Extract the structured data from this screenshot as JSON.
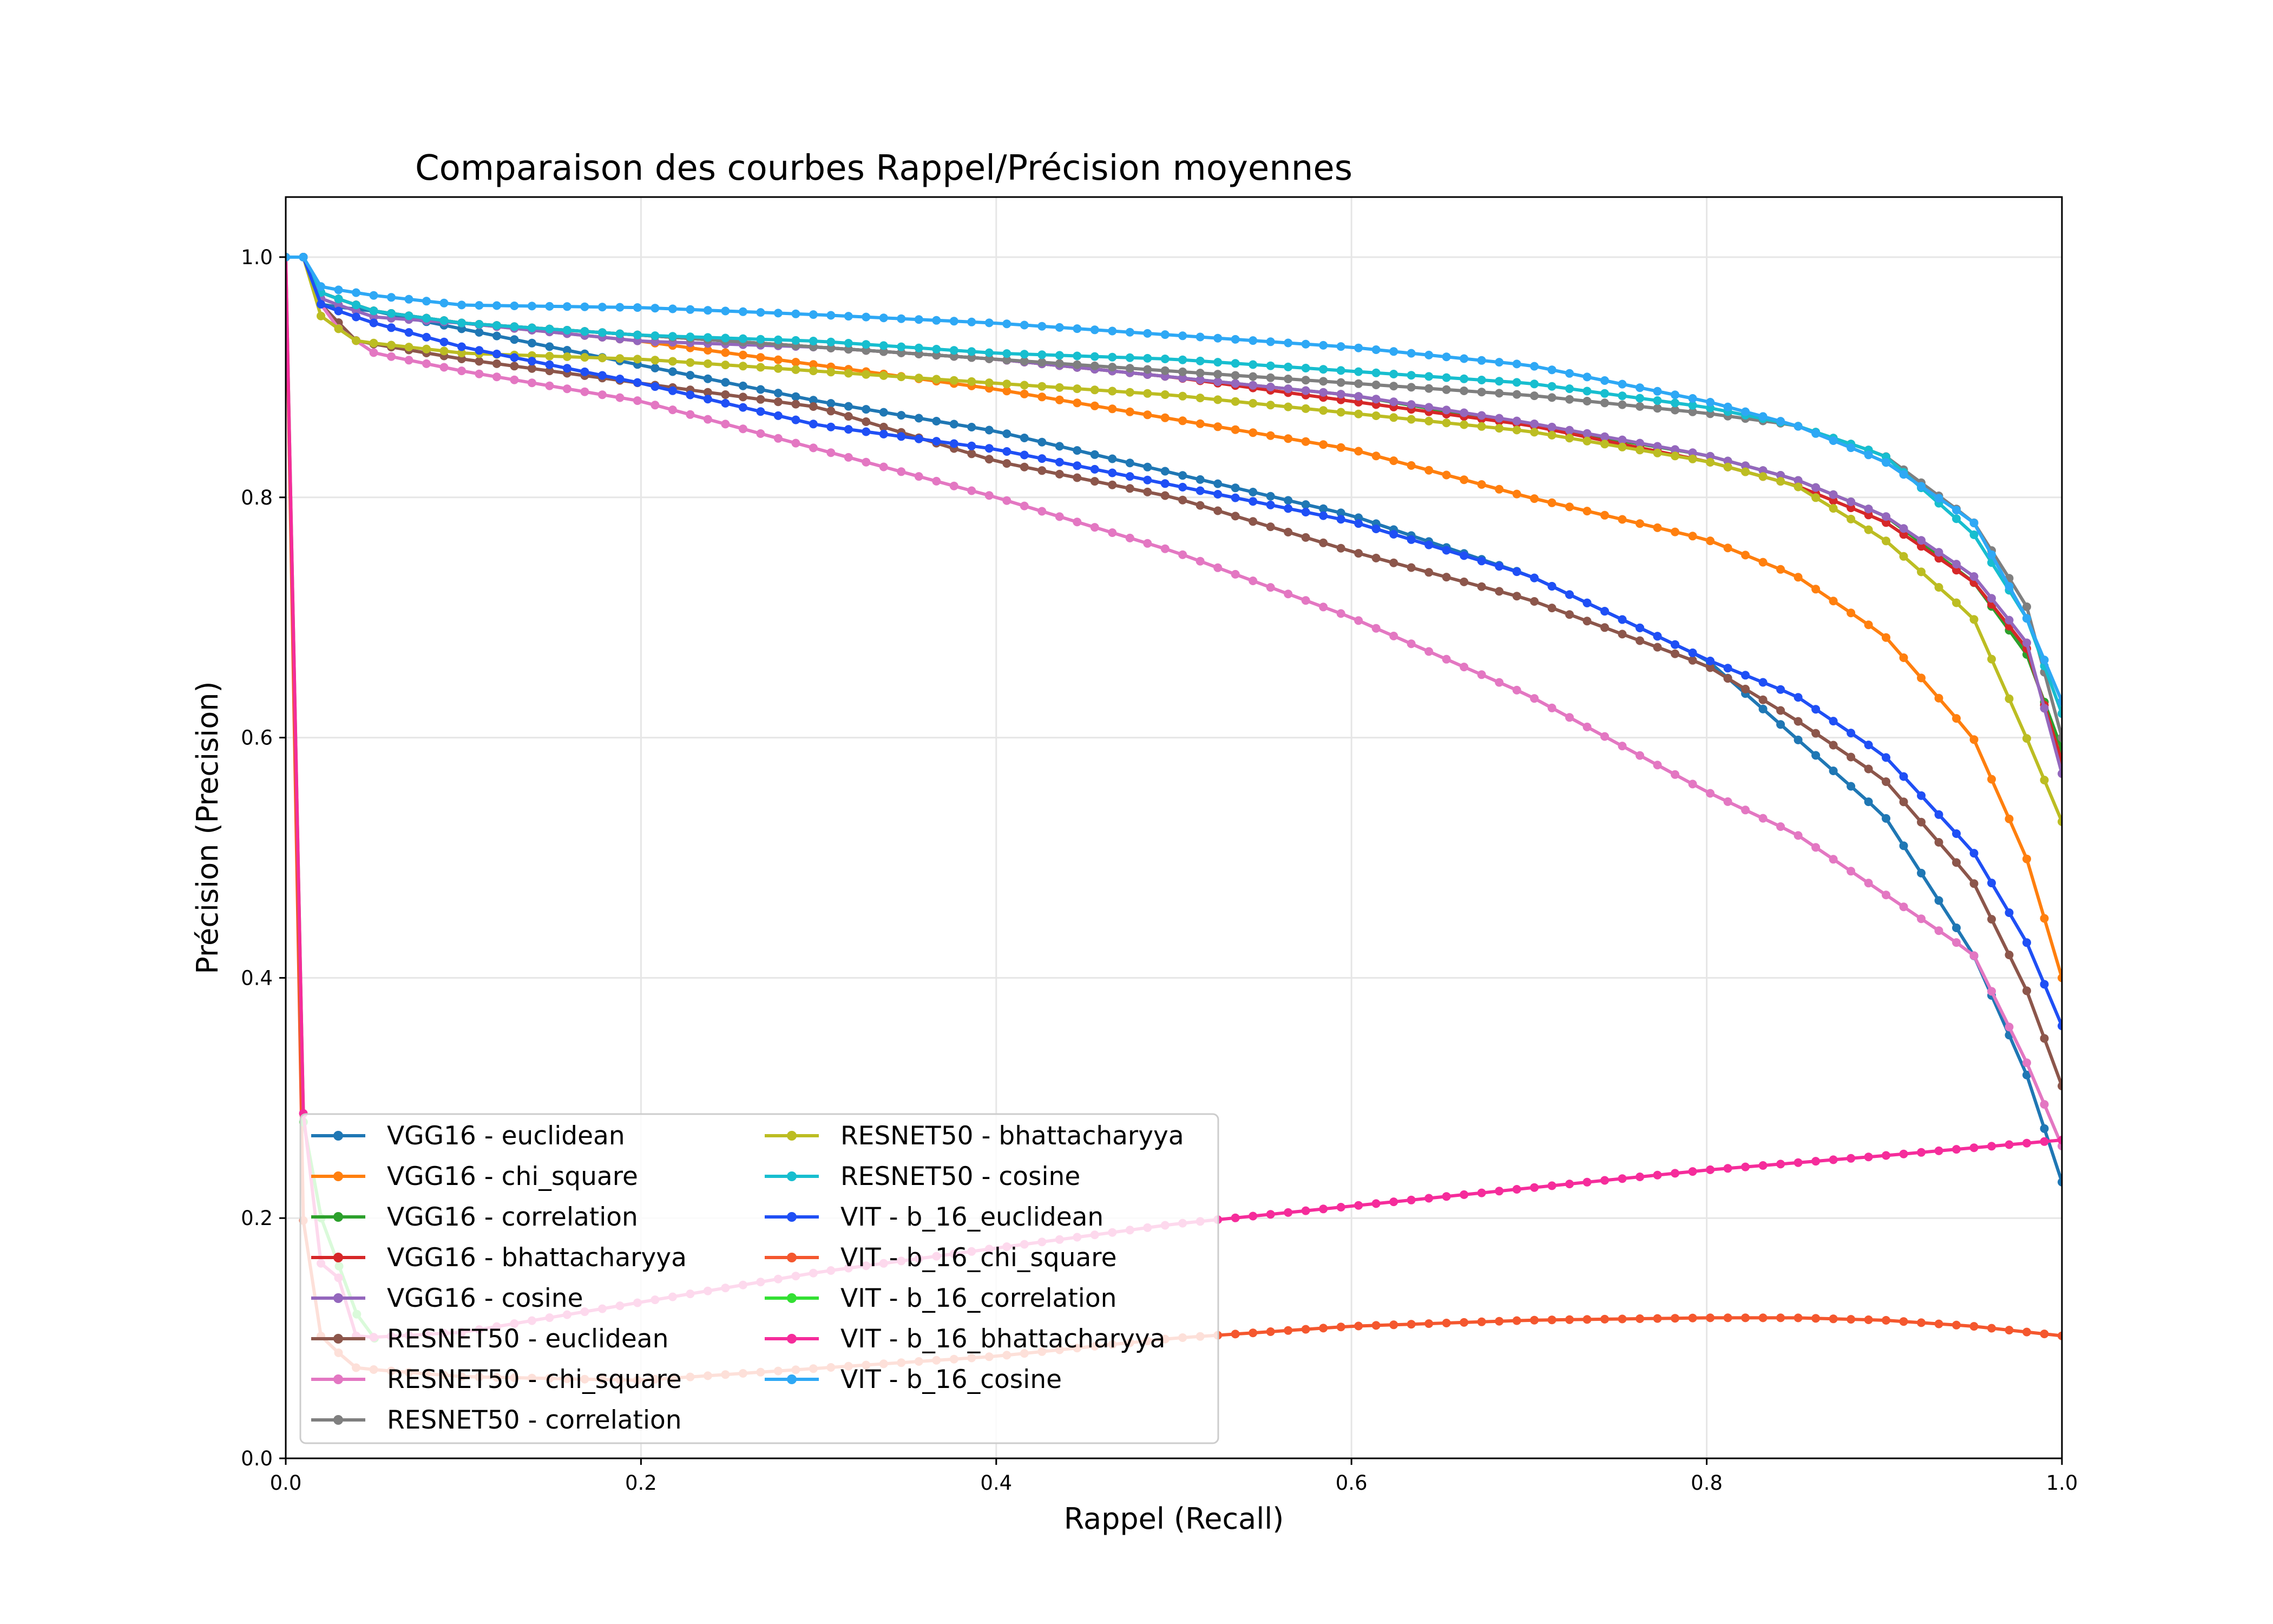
{
  "chart_data": {
    "type": "line",
    "title": "Comparaison des courbes Rappel/Précision moyennes",
    "xlabel": "Rappel (Recall)",
    "ylabel": "Précision (Precision)",
    "xlim": [
      0,
      1
    ],
    "ylim": [
      0,
      1.05
    ],
    "x_ticks": [
      "0.0",
      "0.2",
      "0.4",
      "0.6",
      "0.8",
      "1.0"
    ],
    "y_ticks": [
      "0.0",
      "0.2",
      "0.4",
      "0.6",
      "0.8",
      "1.0"
    ],
    "grid": true,
    "legend_position": "lower-left",
    "legend_columns": 2,
    "series": [
      {
        "name": "VGG16 - euclidean",
        "color": "#1f77b4",
        "points": [
          [
            0.0,
            1.0
          ],
          [
            0.01,
            1.0
          ],
          [
            0.02,
            0.96
          ],
          [
            0.05,
            0.955
          ],
          [
            0.1,
            0.94
          ],
          [
            0.2,
            0.91
          ],
          [
            0.3,
            0.88
          ],
          [
            0.4,
            0.855
          ],
          [
            0.5,
            0.82
          ],
          [
            0.6,
            0.785
          ],
          [
            0.7,
            0.735
          ],
          [
            0.8,
            0.665
          ],
          [
            0.85,
            0.6
          ],
          [
            0.9,
            0.535
          ],
          [
            0.95,
            0.42
          ],
          [
            0.98,
            0.32
          ],
          [
            1.0,
            0.23
          ]
        ]
      },
      {
        "name": "VGG16 - chi_square",
        "color": "#ff7f0e",
        "points": [
          [
            0.0,
            1.0
          ],
          [
            0.01,
            1.0
          ],
          [
            0.02,
            0.97
          ],
          [
            0.05,
            0.955
          ],
          [
            0.1,
            0.945
          ],
          [
            0.2,
            0.93
          ],
          [
            0.3,
            0.91
          ],
          [
            0.4,
            0.89
          ],
          [
            0.5,
            0.865
          ],
          [
            0.6,
            0.84
          ],
          [
            0.7,
            0.8
          ],
          [
            0.8,
            0.765
          ],
          [
            0.85,
            0.735
          ],
          [
            0.9,
            0.685
          ],
          [
            0.95,
            0.6
          ],
          [
            0.98,
            0.5
          ],
          [
            1.0,
            0.4
          ]
        ]
      },
      {
        "name": "VGG16 - correlation",
        "color": "#2ca02c",
        "points": [
          [
            0.0,
            1.0
          ],
          [
            0.01,
            1.0
          ],
          [
            0.02,
            0.97
          ],
          [
            0.05,
            0.955
          ],
          [
            0.1,
            0.945
          ],
          [
            0.2,
            0.935
          ],
          [
            0.3,
            0.925
          ],
          [
            0.4,
            0.915
          ],
          [
            0.5,
            0.9
          ],
          [
            0.6,
            0.885
          ],
          [
            0.7,
            0.86
          ],
          [
            0.8,
            0.835
          ],
          [
            0.85,
            0.815
          ],
          [
            0.9,
            0.785
          ],
          [
            0.95,
            0.73
          ],
          [
            0.98,
            0.67
          ],
          [
            1.0,
            0.59
          ]
        ]
      },
      {
        "name": "VGG16 - bhattacharyya",
        "color": "#d62728",
        "points": [
          [
            0.0,
            1.0
          ],
          [
            0.01,
            1.0
          ],
          [
            0.02,
            0.97
          ],
          [
            0.05,
            0.955
          ],
          [
            0.1,
            0.945
          ],
          [
            0.2,
            0.935
          ],
          [
            0.3,
            0.925
          ],
          [
            0.4,
            0.915
          ],
          [
            0.5,
            0.9
          ],
          [
            0.6,
            0.88
          ],
          [
            0.7,
            0.86
          ],
          [
            0.8,
            0.83
          ],
          [
            0.85,
            0.81
          ],
          [
            0.9,
            0.78
          ],
          [
            0.95,
            0.73
          ],
          [
            0.98,
            0.675
          ],
          [
            1.0,
            0.58
          ]
        ]
      },
      {
        "name": "VGG16 - cosine",
        "color": "#9467bd",
        "points": [
          [
            0.0,
            1.0
          ],
          [
            0.01,
            1.0
          ],
          [
            0.02,
            0.965
          ],
          [
            0.05,
            0.95
          ],
          [
            0.1,
            0.945
          ],
          [
            0.2,
            0.93
          ],
          [
            0.3,
            0.925
          ],
          [
            0.4,
            0.915
          ],
          [
            0.5,
            0.9
          ],
          [
            0.6,
            0.885
          ],
          [
            0.7,
            0.862
          ],
          [
            0.8,
            0.835
          ],
          [
            0.85,
            0.815
          ],
          [
            0.9,
            0.785
          ],
          [
            0.95,
            0.735
          ],
          [
            0.98,
            0.68
          ],
          [
            1.0,
            0.57
          ]
        ]
      },
      {
        "name": "RESNET50 - euclidean",
        "color": "#8c564b",
        "points": [
          [
            0.0,
            1.0
          ],
          [
            0.01,
            1.0
          ],
          [
            0.02,
            0.96
          ],
          [
            0.04,
            0.93
          ],
          [
            0.1,
            0.915
          ],
          [
            0.2,
            0.895
          ],
          [
            0.3,
            0.875
          ],
          [
            0.4,
            0.83
          ],
          [
            0.5,
            0.8
          ],
          [
            0.6,
            0.755
          ],
          [
            0.7,
            0.715
          ],
          [
            0.8,
            0.66
          ],
          [
            0.85,
            0.615
          ],
          [
            0.9,
            0.565
          ],
          [
            0.95,
            0.48
          ],
          [
            0.98,
            0.39
          ],
          [
            1.0,
            0.31
          ]
        ]
      },
      {
        "name": "RESNET50 - chi_square",
        "color": "#e377c2",
        "points": [
          [
            0.0,
            1.0
          ],
          [
            0.01,
            1.0
          ],
          [
            0.02,
            0.96
          ],
          [
            0.03,
            0.94
          ],
          [
            0.05,
            0.92
          ],
          [
            0.1,
            0.905
          ],
          [
            0.2,
            0.88
          ],
          [
            0.3,
            0.84
          ],
          [
            0.4,
            0.8
          ],
          [
            0.5,
            0.755
          ],
          [
            0.6,
            0.7
          ],
          [
            0.7,
            0.635
          ],
          [
            0.8,
            0.555
          ],
          [
            0.85,
            0.52
          ],
          [
            0.9,
            0.47
          ],
          [
            0.95,
            0.42
          ],
          [
            0.98,
            0.33
          ],
          [
            1.0,
            0.26
          ]
        ]
      },
      {
        "name": "RESNET50 - correlation",
        "color": "#7f7f7f",
        "points": [
          [
            0.0,
            1.0
          ],
          [
            0.01,
            1.0
          ],
          [
            0.02,
            0.97
          ],
          [
            0.05,
            0.955
          ],
          [
            0.1,
            0.945
          ],
          [
            0.2,
            0.935
          ],
          [
            0.3,
            0.925
          ],
          [
            0.4,
            0.915
          ],
          [
            0.5,
            0.905
          ],
          [
            0.6,
            0.895
          ],
          [
            0.7,
            0.885
          ],
          [
            0.8,
            0.87
          ],
          [
            0.85,
            0.86
          ],
          [
            0.9,
            0.835
          ],
          [
            0.95,
            0.78
          ],
          [
            0.98,
            0.71
          ],
          [
            1.0,
            0.6
          ]
        ]
      },
      {
        "name": "RESNET50 - bhattacharyya",
        "color": "#bcbd22",
        "points": [
          [
            0.0,
            1.0
          ],
          [
            0.01,
            1.0
          ],
          [
            0.02,
            0.95
          ],
          [
            0.04,
            0.93
          ],
          [
            0.1,
            0.92
          ],
          [
            0.2,
            0.915
          ],
          [
            0.3,
            0.905
          ],
          [
            0.4,
            0.895
          ],
          [
            0.5,
            0.885
          ],
          [
            0.6,
            0.87
          ],
          [
            0.7,
            0.855
          ],
          [
            0.8,
            0.83
          ],
          [
            0.85,
            0.81
          ],
          [
            0.9,
            0.765
          ],
          [
            0.95,
            0.7
          ],
          [
            0.98,
            0.6
          ],
          [
            1.0,
            0.53
          ]
        ]
      },
      {
        "name": "RESNET50 - cosine",
        "color": "#17becf",
        "points": [
          [
            0.0,
            1.0
          ],
          [
            0.01,
            1.0
          ],
          [
            0.02,
            0.97
          ],
          [
            0.05,
            0.955
          ],
          [
            0.1,
            0.945
          ],
          [
            0.2,
            0.935
          ],
          [
            0.3,
            0.93
          ],
          [
            0.4,
            0.92
          ],
          [
            0.5,
            0.915
          ],
          [
            0.6,
            0.905
          ],
          [
            0.7,
            0.895
          ],
          [
            0.8,
            0.875
          ],
          [
            0.85,
            0.86
          ],
          [
            0.9,
            0.835
          ],
          [
            0.95,
            0.77
          ],
          [
            0.98,
            0.7
          ],
          [
            1.0,
            0.62
          ]
        ]
      },
      {
        "name": "VIT - b_16_euclidean",
        "color": "#1f4ff5",
        "points": [
          [
            0.0,
            1.0
          ],
          [
            0.01,
            1.0
          ],
          [
            0.02,
            0.96
          ],
          [
            0.05,
            0.945
          ],
          [
            0.1,
            0.925
          ],
          [
            0.2,
            0.895
          ],
          [
            0.3,
            0.86
          ],
          [
            0.4,
            0.84
          ],
          [
            0.5,
            0.81
          ],
          [
            0.6,
            0.78
          ],
          [
            0.7,
            0.735
          ],
          [
            0.8,
            0.665
          ],
          [
            0.85,
            0.635
          ],
          [
            0.9,
            0.585
          ],
          [
            0.95,
            0.505
          ],
          [
            0.98,
            0.43
          ],
          [
            1.0,
            0.36
          ]
        ]
      },
      {
        "name": "VIT - b_16_chi_square",
        "color": "#f4572e",
        "points": [
          [
            0.0,
            1.0
          ],
          [
            0.01,
            0.19
          ],
          [
            0.02,
            0.1
          ],
          [
            0.04,
            0.075
          ],
          [
            0.1,
            0.068
          ],
          [
            0.2,
            0.065
          ],
          [
            0.3,
            0.075
          ],
          [
            0.4,
            0.085
          ],
          [
            0.5,
            0.1
          ],
          [
            0.6,
            0.11
          ],
          [
            0.7,
            0.115
          ],
          [
            0.8,
            0.117
          ],
          [
            0.85,
            0.117
          ],
          [
            0.9,
            0.115
          ],
          [
            0.95,
            0.11
          ],
          [
            1.0,
            0.102
          ]
        ]
      },
      {
        "name": "VIT - b_16_correlation",
        "color": "#33e033",
        "points": [
          [
            0.0,
            1.0
          ],
          [
            0.01,
            0.28
          ],
          [
            0.02,
            0.2
          ],
          [
            0.03,
            0.16
          ],
          [
            0.04,
            0.12
          ],
          [
            0.05,
            0.1
          ]
        ]
      },
      {
        "name": "VIT - b_16_bhattacharyya",
        "color": "#f52c9b",
        "points": [
          [
            0.0,
            1.0
          ],
          [
            0.01,
            0.28
          ],
          [
            0.02,
            0.16
          ],
          [
            0.03,
            0.15
          ],
          [
            0.04,
            0.1
          ],
          [
            0.1,
            0.105
          ],
          [
            0.2,
            0.13
          ],
          [
            0.3,
            0.155
          ],
          [
            0.4,
            0.175
          ],
          [
            0.5,
            0.195
          ],
          [
            0.6,
            0.21
          ],
          [
            0.7,
            0.225
          ],
          [
            0.8,
            0.24
          ],
          [
            0.9,
            0.252
          ],
          [
            1.0,
            0.265
          ]
        ]
      },
      {
        "name": "VIT - b_16_cosine",
        "color": "#2ea8f5",
        "points": [
          [
            0.0,
            1.0
          ],
          [
            0.01,
            1.0
          ],
          [
            0.02,
            0.975
          ],
          [
            0.05,
            0.968
          ],
          [
            0.1,
            0.96
          ],
          [
            0.2,
            0.958
          ],
          [
            0.3,
            0.952
          ],
          [
            0.4,
            0.945
          ],
          [
            0.5,
            0.935
          ],
          [
            0.6,
            0.925
          ],
          [
            0.7,
            0.91
          ],
          [
            0.8,
            0.88
          ],
          [
            0.85,
            0.86
          ],
          [
            0.9,
            0.83
          ],
          [
            0.95,
            0.78
          ],
          [
            0.98,
            0.7
          ],
          [
            1.0,
            0.63
          ]
        ]
      }
    ]
  }
}
